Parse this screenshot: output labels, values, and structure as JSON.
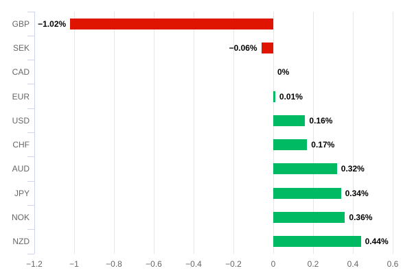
{
  "chart_data": {
    "type": "bar",
    "orientation": "horizontal",
    "title": "",
    "xlabel": "",
    "ylabel": "",
    "categories": [
      "GBP",
      "SEK",
      "CAD",
      "EUR",
      "USD",
      "CHF",
      "AUD",
      "JPY",
      "NOK",
      "NZD"
    ],
    "values": [
      -1.02,
      -0.06,
      0,
      0.01,
      0.16,
      0.17,
      0.32,
      0.34,
      0.36,
      0.44
    ],
    "value_labels": [
      "−1.02%",
      "−0.06%",
      "0%",
      "0.01%",
      "0.16%",
      "0.17%",
      "0.32%",
      "0.34%",
      "0.36%",
      "0.44%"
    ],
    "xlim": [
      -1.2,
      0.6
    ],
    "xticks": [
      -1.2,
      -1,
      -0.8,
      -0.6,
      -0.4,
      -0.2,
      0,
      0.2,
      0.4,
      0.6
    ],
    "xtick_labels": [
      "−1.2",
      "−1",
      "−0.8",
      "−0.6",
      "−0.4",
      "−0.2",
      "0",
      "0.2",
      "0.4",
      "0.6"
    ],
    "grid": true,
    "legend": false,
    "colors": {
      "negative_bar": "#df1502",
      "positive_bar": "#00ba63",
      "gridline": "#e6e6e6",
      "axis_line": "#ccd6eb",
      "tick_mark": "#ccd6eb",
      "category_label": "#666666",
      "axis_label": "#666666",
      "data_label": "#000000",
      "background": "#ffffff"
    }
  }
}
